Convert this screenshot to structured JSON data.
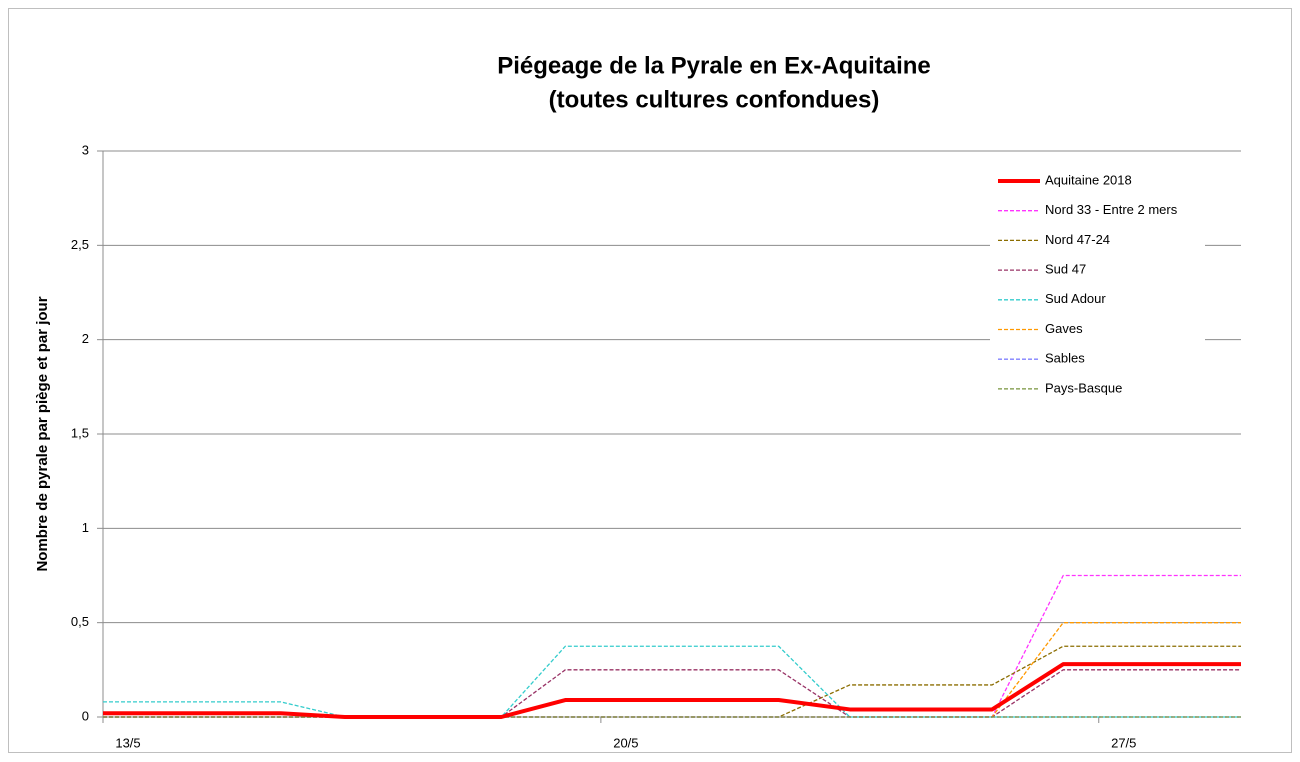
{
  "chart_data": {
    "type": "line",
    "title": "Piégeage de la Pyrale en Ex-Aquitaine",
    "subtitle": "(toutes cultures confondues)",
    "y_label": "Nombre de pyrale par piège et par jour",
    "x": [
      13,
      15.5,
      16.4,
      18.6,
      19.5,
      22.5,
      23.5,
      25.5,
      26.5,
      29
    ],
    "xlim": [
      13,
      29
    ],
    "xticks": [
      {
        "value": 13,
        "label": "13/5"
      },
      {
        "value": 20,
        "label": "20/5"
      },
      {
        "value": 27,
        "label": "27/5"
      }
    ],
    "ylim": [
      0,
      3
    ],
    "yticks": [
      0,
      {
        "value": 0.5,
        "label": "0,5"
      },
      1,
      {
        "value": 1.5,
        "label": "1,5"
      },
      2,
      {
        "value": 2.5,
        "label": "2,5"
      },
      3
    ],
    "grid": true,
    "legend": "top-right",
    "series": [
      {
        "name": "Aquitaine 2018",
        "color": "#ff0000",
        "dashed": false,
        "values": [
          0.02,
          0.02,
          0,
          0,
          0.09,
          0.09,
          0.04,
          0.04,
          0.28,
          0.28
        ]
      },
      {
        "name": "Nord 33 - Entre 2 mers",
        "color": "#ff33ff",
        "dashed": true,
        "values": [
          0,
          0,
          0,
          0,
          0,
          0,
          0,
          0,
          0.75,
          0.75
        ]
      },
      {
        "name": "Nord 47-24",
        "color": "#8b6d00",
        "dashed": true,
        "values": [
          0,
          0,
          0,
          0,
          0,
          0,
          0.17,
          0.17,
          0.375,
          0.375
        ]
      },
      {
        "name": "Sud 47",
        "color": "#993366",
        "dashed": true,
        "values": [
          0,
          0,
          0,
          0,
          0.25,
          0.25,
          0,
          0,
          0.25,
          0.25
        ]
      },
      {
        "name": "Sud Adour",
        "color": "#33cccc",
        "dashed": true,
        "values": [
          0.08,
          0.08,
          0,
          0,
          0.375,
          0.375,
          0,
          0,
          0,
          0
        ]
      },
      {
        "name": "Gaves",
        "color": "#ff9900",
        "dashed": true,
        "values": [
          0,
          0,
          0,
          0,
          0,
          0,
          0,
          0,
          0.5,
          0.5
        ]
      },
      {
        "name": "Sables",
        "color": "#8080ff",
        "dashed": true,
        "values": [
          0,
          0,
          0,
          0,
          0,
          0,
          0,
          0,
          0,
          0
        ]
      },
      {
        "name": "Pays-Basque",
        "color": "#77933c",
        "dashed": true,
        "values": [
          0,
          0,
          0,
          0,
          0,
          0,
          0,
          0,
          0,
          0
        ]
      }
    ]
  }
}
